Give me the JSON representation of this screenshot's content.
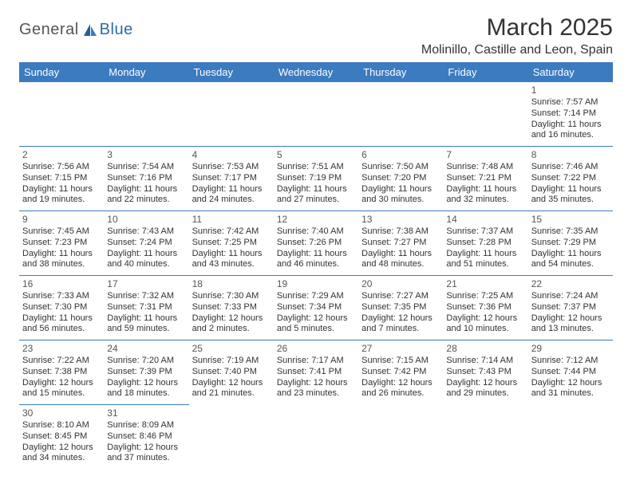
{
  "logo": {
    "text1": "General",
    "text2": "Blue",
    "shape_color": "#1f5f99"
  },
  "title": "March 2025",
  "subtitle": "Molinillo, Castille and Leon, Spain",
  "colors": {
    "header_bg": "#3b7bbf",
    "header_text": "#ffffff",
    "cell_border": "#3b7bbf",
    "text": "#333333",
    "background": "#ffffff"
  },
  "font_sizes": {
    "title": 30,
    "subtitle": 16,
    "day_header": 13,
    "cell": 11,
    "daynum": 12
  },
  "weekdays": [
    "Sunday",
    "Monday",
    "Tuesday",
    "Wednesday",
    "Thursday",
    "Friday",
    "Saturday"
  ],
  "weeks": [
    [
      null,
      null,
      null,
      null,
      null,
      null,
      {
        "n": "1",
        "sr": "Sunrise: 7:57 AM",
        "ss": "Sunset: 7:14 PM",
        "dl": "Daylight: 11 hours and 16 minutes."
      }
    ],
    [
      {
        "n": "2",
        "sr": "Sunrise: 7:56 AM",
        "ss": "Sunset: 7:15 PM",
        "dl": "Daylight: 11 hours and 19 minutes."
      },
      {
        "n": "3",
        "sr": "Sunrise: 7:54 AM",
        "ss": "Sunset: 7:16 PM",
        "dl": "Daylight: 11 hours and 22 minutes."
      },
      {
        "n": "4",
        "sr": "Sunrise: 7:53 AM",
        "ss": "Sunset: 7:17 PM",
        "dl": "Daylight: 11 hours and 24 minutes."
      },
      {
        "n": "5",
        "sr": "Sunrise: 7:51 AM",
        "ss": "Sunset: 7:19 PM",
        "dl": "Daylight: 11 hours and 27 minutes."
      },
      {
        "n": "6",
        "sr": "Sunrise: 7:50 AM",
        "ss": "Sunset: 7:20 PM",
        "dl": "Daylight: 11 hours and 30 minutes."
      },
      {
        "n": "7",
        "sr": "Sunrise: 7:48 AM",
        "ss": "Sunset: 7:21 PM",
        "dl": "Daylight: 11 hours and 32 minutes."
      },
      {
        "n": "8",
        "sr": "Sunrise: 7:46 AM",
        "ss": "Sunset: 7:22 PM",
        "dl": "Daylight: 11 hours and 35 minutes."
      }
    ],
    [
      {
        "n": "9",
        "sr": "Sunrise: 7:45 AM",
        "ss": "Sunset: 7:23 PM",
        "dl": "Daylight: 11 hours and 38 minutes."
      },
      {
        "n": "10",
        "sr": "Sunrise: 7:43 AM",
        "ss": "Sunset: 7:24 PM",
        "dl": "Daylight: 11 hours and 40 minutes."
      },
      {
        "n": "11",
        "sr": "Sunrise: 7:42 AM",
        "ss": "Sunset: 7:25 PM",
        "dl": "Daylight: 11 hours and 43 minutes."
      },
      {
        "n": "12",
        "sr": "Sunrise: 7:40 AM",
        "ss": "Sunset: 7:26 PM",
        "dl": "Daylight: 11 hours and 46 minutes."
      },
      {
        "n": "13",
        "sr": "Sunrise: 7:38 AM",
        "ss": "Sunset: 7:27 PM",
        "dl": "Daylight: 11 hours and 48 minutes."
      },
      {
        "n": "14",
        "sr": "Sunrise: 7:37 AM",
        "ss": "Sunset: 7:28 PM",
        "dl": "Daylight: 11 hours and 51 minutes."
      },
      {
        "n": "15",
        "sr": "Sunrise: 7:35 AM",
        "ss": "Sunset: 7:29 PM",
        "dl": "Daylight: 11 hours and 54 minutes."
      }
    ],
    [
      {
        "n": "16",
        "sr": "Sunrise: 7:33 AM",
        "ss": "Sunset: 7:30 PM",
        "dl": "Daylight: 11 hours and 56 minutes."
      },
      {
        "n": "17",
        "sr": "Sunrise: 7:32 AM",
        "ss": "Sunset: 7:31 PM",
        "dl": "Daylight: 11 hours and 59 minutes."
      },
      {
        "n": "18",
        "sr": "Sunrise: 7:30 AM",
        "ss": "Sunset: 7:33 PM",
        "dl": "Daylight: 12 hours and 2 minutes."
      },
      {
        "n": "19",
        "sr": "Sunrise: 7:29 AM",
        "ss": "Sunset: 7:34 PM",
        "dl": "Daylight: 12 hours and 5 minutes."
      },
      {
        "n": "20",
        "sr": "Sunrise: 7:27 AM",
        "ss": "Sunset: 7:35 PM",
        "dl": "Daylight: 12 hours and 7 minutes."
      },
      {
        "n": "21",
        "sr": "Sunrise: 7:25 AM",
        "ss": "Sunset: 7:36 PM",
        "dl": "Daylight: 12 hours and 10 minutes."
      },
      {
        "n": "22",
        "sr": "Sunrise: 7:24 AM",
        "ss": "Sunset: 7:37 PM",
        "dl": "Daylight: 12 hours and 13 minutes."
      }
    ],
    [
      {
        "n": "23",
        "sr": "Sunrise: 7:22 AM",
        "ss": "Sunset: 7:38 PM",
        "dl": "Daylight: 12 hours and 15 minutes."
      },
      {
        "n": "24",
        "sr": "Sunrise: 7:20 AM",
        "ss": "Sunset: 7:39 PM",
        "dl": "Daylight: 12 hours and 18 minutes."
      },
      {
        "n": "25",
        "sr": "Sunrise: 7:19 AM",
        "ss": "Sunset: 7:40 PM",
        "dl": "Daylight: 12 hours and 21 minutes."
      },
      {
        "n": "26",
        "sr": "Sunrise: 7:17 AM",
        "ss": "Sunset: 7:41 PM",
        "dl": "Daylight: 12 hours and 23 minutes."
      },
      {
        "n": "27",
        "sr": "Sunrise: 7:15 AM",
        "ss": "Sunset: 7:42 PM",
        "dl": "Daylight: 12 hours and 26 minutes."
      },
      {
        "n": "28",
        "sr": "Sunrise: 7:14 AM",
        "ss": "Sunset: 7:43 PM",
        "dl": "Daylight: 12 hours and 29 minutes."
      },
      {
        "n": "29",
        "sr": "Sunrise: 7:12 AM",
        "ss": "Sunset: 7:44 PM",
        "dl": "Daylight: 12 hours and 31 minutes."
      }
    ],
    [
      {
        "n": "30",
        "sr": "Sunrise: 8:10 AM",
        "ss": "Sunset: 8:45 PM",
        "dl": "Daylight: 12 hours and 34 minutes."
      },
      {
        "n": "31",
        "sr": "Sunrise: 8:09 AM",
        "ss": "Sunset: 8:46 PM",
        "dl": "Daylight: 12 hours and 37 minutes."
      },
      null,
      null,
      null,
      null,
      null
    ]
  ]
}
